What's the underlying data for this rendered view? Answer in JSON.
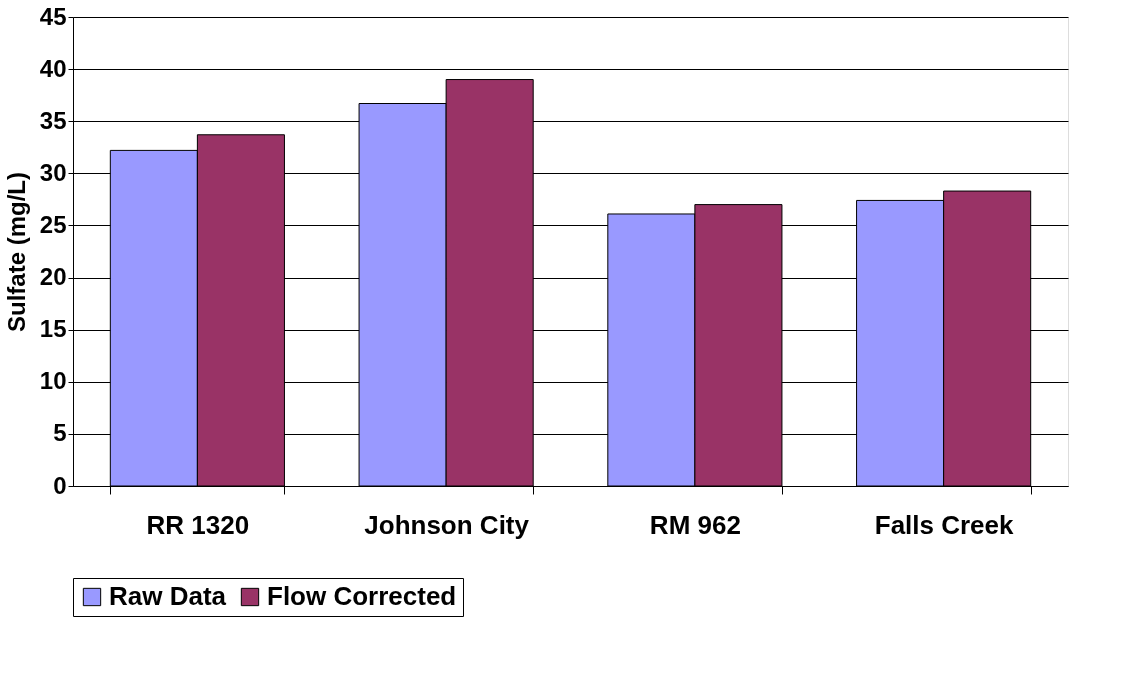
{
  "chart_data": {
    "type": "bar",
    "ylabel": "Sulfate (mg/L)",
    "categories": [
      "RR 1320",
      "Johnson City",
      "RM 962",
      "Falls Creek"
    ],
    "series": [
      {
        "name": "Raw Data",
        "color": "#9999ff",
        "values": [
          32.2,
          36.7,
          26.1,
          27.4
        ]
      },
      {
        "name": "Flow Corrected",
        "color": "#993366",
        "values": [
          33.7,
          39.0,
          27.0,
          28.3
        ]
      }
    ],
    "ylim": [
      0,
      45
    ],
    "yticks": [
      0,
      5,
      10,
      15,
      20,
      25,
      30,
      35,
      40,
      45
    ],
    "grid": "y",
    "legend": "bottom"
  }
}
